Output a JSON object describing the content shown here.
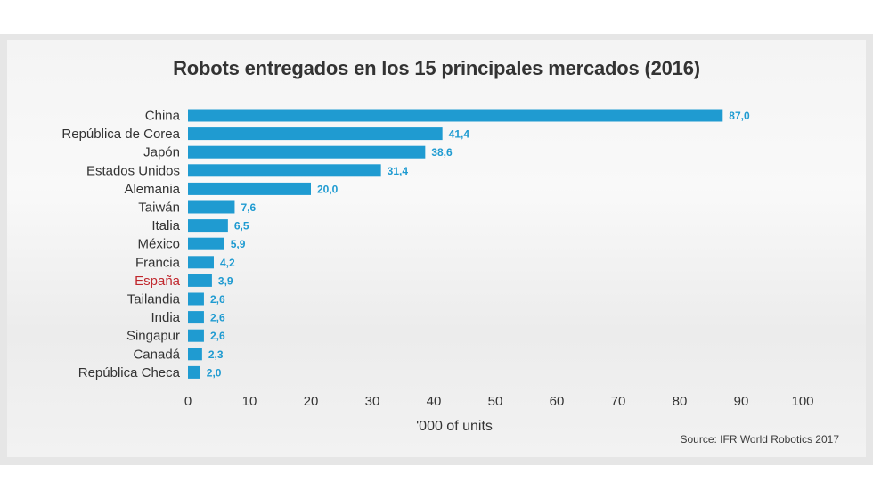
{
  "chart_data": {
    "type": "bar",
    "orientation": "horizontal",
    "title": "Robots entregados en los 15 principales mercados (2016)",
    "xlabel": "'000 of units",
    "ylabel": "",
    "xlim": [
      0,
      100
    ],
    "ticks": [
      0,
      10,
      20,
      30,
      40,
      50,
      60,
      70,
      80,
      90,
      100
    ],
    "grid": false,
    "bar_color": "#1f9bd1",
    "highlight_color": "#c0272d",
    "highlight_category": "España",
    "categories": [
      "China",
      "República de Corea",
      "Japón",
      "Estados Unidos",
      "Alemania",
      "Taiwán",
      "Italia",
      "México",
      "Francia",
      "España",
      "Tailandia",
      "India",
      "Singapur",
      "Canadá",
      "República Checa"
    ],
    "values": [
      87.0,
      41.4,
      38.6,
      31.4,
      20.0,
      7.6,
      6.5,
      5.9,
      4.2,
      3.9,
      2.6,
      2.6,
      2.6,
      2.3,
      2.0
    ],
    "value_labels": [
      "87,0",
      "41,4",
      "38,6",
      "31,4",
      "20,0",
      "7,6",
      "6,5",
      "5,9",
      "4,2",
      "3,9",
      "2,6",
      "2,6",
      "2,6",
      "2,3",
      "2,0"
    ],
    "source": "Source: IFR World Robotics 2017"
  }
}
